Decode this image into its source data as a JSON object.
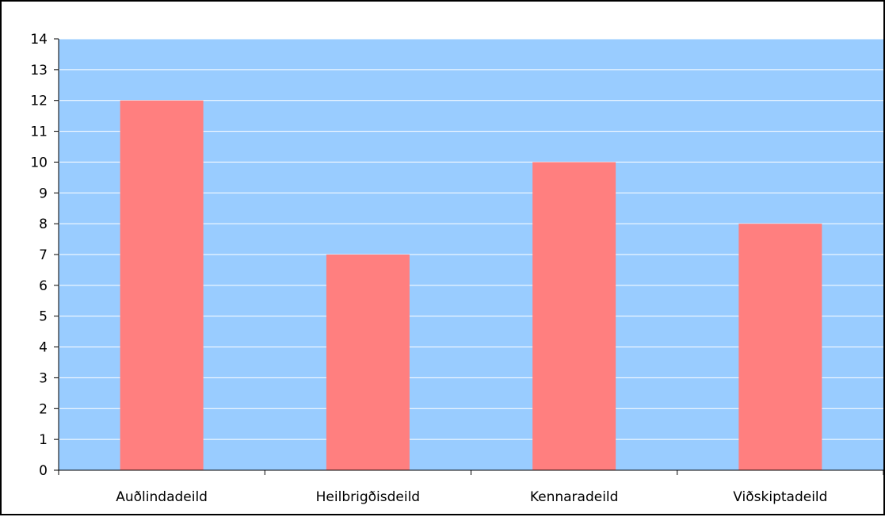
{
  "chart_data": {
    "type": "bar",
    "categories": [
      "Auðlindadeild",
      "Heilbrigðisdeild",
      "Kennaradeild",
      "Viðskiptadeild"
    ],
    "values": [
      12,
      7,
      10,
      8
    ],
    "title": "",
    "xlabel": "",
    "ylabel": "",
    "ylim": [
      0,
      14
    ],
    "yticks": [
      "0",
      "1",
      "2",
      "3",
      "4",
      "5",
      "6",
      "7",
      "8",
      "9",
      "10",
      "11",
      "12",
      "13",
      "14"
    ],
    "grid": true,
    "legend": "none",
    "colors": {
      "plot_background": "#99ccff",
      "bar_fill": "#ff7f7f",
      "gridline": "#ffffff",
      "axis": "#000000"
    }
  }
}
